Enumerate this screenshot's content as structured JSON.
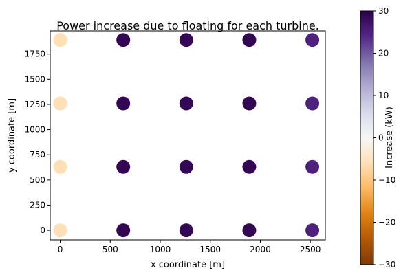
{
  "chart_data": {
    "type": "scatter",
    "title": "Power increase due to floating for each turbine.",
    "xlabel": "x coordinate [m]",
    "ylabel": "y coordinate [m]",
    "xlim": [
      -100,
      2650
    ],
    "ylim": [
      -95,
      1980
    ],
    "xticks": [
      0,
      500,
      1000,
      1500,
      2000,
      2500
    ],
    "yticks": [
      0,
      250,
      500,
      750,
      1000,
      1250,
      1500,
      1750
    ],
    "grid": false,
    "colorbar": {
      "label": "Increase (kW)",
      "min": -30,
      "max": 30,
      "ticks": [
        -30,
        -20,
        -10,
        0,
        10,
        20,
        30
      ],
      "colormap": "PuOr"
    },
    "points": [
      {
        "x": 0,
        "y": 0,
        "value": -6
      },
      {
        "x": 0,
        "y": 630,
        "value": -6
      },
      {
        "x": 0,
        "y": 1260,
        "value": -6
      },
      {
        "x": 0,
        "y": 1890,
        "value": -6
      },
      {
        "x": 630,
        "y": 0,
        "value": 29
      },
      {
        "x": 630,
        "y": 630,
        "value": 29
      },
      {
        "x": 630,
        "y": 1260,
        "value": 29
      },
      {
        "x": 630,
        "y": 1890,
        "value": 29
      },
      {
        "x": 1260,
        "y": 0,
        "value": 29
      },
      {
        "x": 1260,
        "y": 630,
        "value": 29
      },
      {
        "x": 1260,
        "y": 1260,
        "value": 29
      },
      {
        "x": 1260,
        "y": 1890,
        "value": 29
      },
      {
        "x": 1890,
        "y": 0,
        "value": 29
      },
      {
        "x": 1890,
        "y": 630,
        "value": 29
      },
      {
        "x": 1890,
        "y": 1260,
        "value": 29
      },
      {
        "x": 1890,
        "y": 1890,
        "value": 29
      },
      {
        "x": 2520,
        "y": 0,
        "value": 25
      },
      {
        "x": 2520,
        "y": 630,
        "value": 25
      },
      {
        "x": 2520,
        "y": 1260,
        "value": 25
      },
      {
        "x": 2520,
        "y": 1890,
        "value": 25
      }
    ]
  }
}
